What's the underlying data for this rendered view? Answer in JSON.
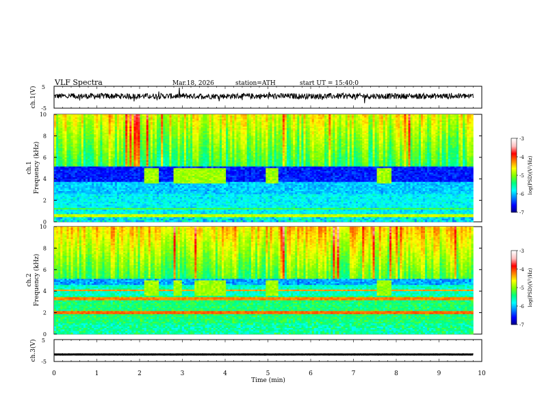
{
  "header": {
    "title": "VLF Spectra",
    "date": "Mar.18, 2026",
    "station": "station=ATH",
    "start": "start UT =  15:40:0"
  },
  "chart_data": [
    {
      "type": "line",
      "panel": "ch1-waveform",
      "ylabel": "ch.1(V)",
      "ytick_labels": [
        "5",
        "-5"
      ],
      "ylim": [
        -5,
        5
      ],
      "xlim": [
        0,
        10
      ],
      "series": [
        {
          "values_description_note": "",
          "level": 0.5,
          "noise_amp": 1.3
        }
      ]
    },
    {
      "type": "heatmap",
      "panel": "ch1-spectrogram",
      "ylabel": "ch.1\nFrequency (kHz)",
      "ylabel_line1": "ch.1",
      "ylabel_line2": "Frequency (kHz)",
      "ytick_labels": [
        "0",
        "2",
        "4",
        "6",
        "8",
        "10"
      ],
      "ylim": [
        0,
        10
      ],
      "xlim": [
        0,
        9.8
      ],
      "colorbar": {
        "label": "log(PSD)(V²/Hz)",
        "range": [
          -7,
          -3
        ],
        "tick_labels": [
          "-3",
          "-4",
          "-5",
          "-6",
          "-7"
        ]
      },
      "transmitter_bursts_min": [
        [
          2.1,
          2.45
        ],
        [
          2.8,
          3.0
        ],
        [
          3.0,
          4.0
        ],
        [
          4.95,
          5.25
        ],
        [
          7.55,
          7.9
        ]
      ],
      "notch_band_khz": [
        3.6,
        5.0
      ]
    },
    {
      "type": "heatmap",
      "panel": "ch2-spectrogram",
      "ylabel_line1": "ch.2",
      "ylabel_line2": "Frequency (kHz)",
      "ytick_labels": [
        "0",
        "2",
        "4",
        "6",
        "8",
        "10"
      ],
      "ylim": [
        0,
        10
      ],
      "xlim": [
        0,
        9.8
      ],
      "colorbar": {
        "label": "log(PSD)(V²/Hz)",
        "range": [
          -7,
          -3
        ],
        "tick_labels": [
          "-3",
          "-4",
          "-5",
          "-6",
          "-7"
        ]
      },
      "transmitter_bursts_min": [
        [
          2.1,
          2.45
        ],
        [
          2.8,
          3.0
        ],
        [
          3.3,
          4.0
        ],
        [
          4.95,
          5.25
        ],
        [
          7.55,
          7.9
        ]
      ]
    },
    {
      "type": "line",
      "panel": "ch3-waveform",
      "ylabel": "ch.3(V)",
      "ytick_labels": [
        "5",
        "-5"
      ],
      "ylim": [
        -5,
        5
      ],
      "xlim": [
        0,
        10
      ],
      "xlabel": "Time (min)",
      "xtick_labels": [
        "0",
        "1",
        "2",
        "3",
        "4",
        "5",
        "6",
        "7",
        "8",
        "9",
        "10"
      ],
      "series": [
        {
          "level": -1.8,
          "noise_amp": 0.05
        }
      ]
    }
  ],
  "colors": {
    "colormap": [
      "#000080",
      "#0000ff",
      "#0080ff",
      "#00ffff",
      "#00ff80",
      "#80ff00",
      "#ffff00",
      "#ff8000",
      "#ff0000",
      "#ffc0c0",
      "#ffffff"
    ],
    "trace": "#000000"
  }
}
